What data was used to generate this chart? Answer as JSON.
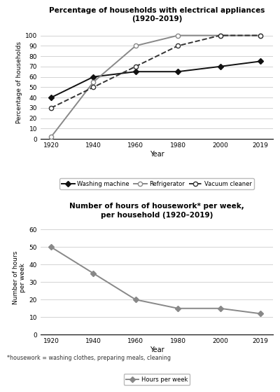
{
  "years": [
    1920,
    1940,
    1960,
    1980,
    2000,
    2019
  ],
  "washing_machine": [
    40,
    60,
    65,
    65,
    70,
    75
  ],
  "refrigerator": [
    2,
    55,
    90,
    100,
    100,
    100
  ],
  "vacuum_cleaner": [
    30,
    50,
    70,
    90,
    100,
    100
  ],
  "hours_per_week": [
    50,
    35,
    20,
    15,
    15,
    12
  ],
  "title1": "Percentage of households with electrical appliances\n(1920–2019)",
  "title2": "Number of hours of housework* per week,\nper household (1920–2019)",
  "ylabel1": "Percentage of households",
  "ylabel2": "Number of hours\nper week",
  "xlabel": "Year",
  "ylim1": [
    0,
    110
  ],
  "ylim2": [
    0,
    65
  ],
  "yticks1": [
    0,
    10,
    20,
    30,
    40,
    50,
    60,
    70,
    80,
    90,
    100
  ],
  "yticks2": [
    0,
    10,
    20,
    30,
    40,
    50,
    60
  ],
  "footnote": "*housework = washing clothes, preparing meals, cleaning",
  "line_color_wm": "#111111",
  "line_color_ref": "#888888",
  "line_color_vc": "#333333",
  "line_color_hrs": "#888888",
  "xlim_left": 1915,
  "xlim_right": 2025
}
